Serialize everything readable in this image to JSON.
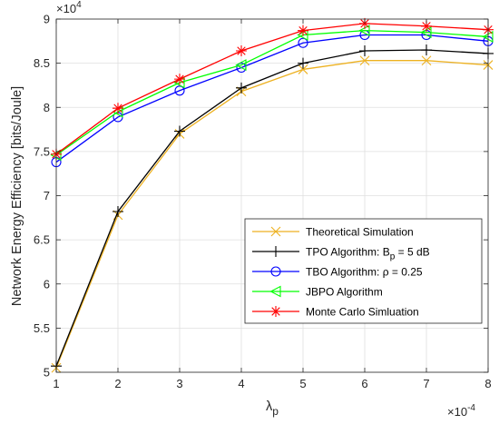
{
  "chart_data": {
    "type": "line",
    "x_label_base": "λ",
    "x_label_sub": "p",
    "ylabel": "Network Energy Efficiency [bits/Joule]",
    "x_exponent_label": "×10",
    "x_exponent_power": "-4",
    "y_exponent_label": "×10",
    "y_exponent_power": "4",
    "x_scale": 0.0001,
    "y_scale": 10000,
    "xlim": [
      0.0001,
      0.0008
    ],
    "ylim": [
      50000,
      90000
    ],
    "x_ticks": [
      1,
      2,
      3,
      4,
      5,
      6,
      7,
      8
    ],
    "y_ticks": [
      5,
      5.5,
      6,
      6.5,
      7,
      7.5,
      8,
      8.5,
      9
    ],
    "grid": true,
    "legend_position": "bottom-right",
    "x": [
      0.0001,
      0.0002,
      0.0003,
      0.0004,
      0.0005,
      0.0006,
      0.0007,
      0.0008
    ],
    "series": [
      {
        "name": "Theoretical Simulation",
        "color": "#EDB120",
        "marker": "x",
        "values": [
          50500,
          67800,
          77000,
          81800,
          84300,
          85300,
          85300,
          84800
        ]
      },
      {
        "name": "TPO Algorithm: B",
        "name_sub": "p",
        "name_suffix": " = 5 dB",
        "color": "#000000",
        "marker": "plus",
        "values": [
          50700,
          68200,
          77300,
          82200,
          85000,
          86400,
          86500,
          86100
        ]
      },
      {
        "name": "TBO Algorithm: ρ = 0.25",
        "color": "#0000FF",
        "marker": "circle",
        "values": [
          73800,
          78900,
          81900,
          84500,
          87300,
          88200,
          88200,
          87500
        ]
      },
      {
        "name": "JBPO Algorithm",
        "color": "#00FF00",
        "marker": "triangle-left",
        "values": [
          74600,
          79500,
          82800,
          84800,
          88200,
          88700,
          88500,
          88000
        ]
      },
      {
        "name": "Monte Carlo Simluation",
        "color": "#FF0000",
        "marker": "asterisk",
        "values": [
          74700,
          79900,
          83200,
          86400,
          88700,
          89500,
          89200,
          88800
        ]
      }
    ]
  }
}
